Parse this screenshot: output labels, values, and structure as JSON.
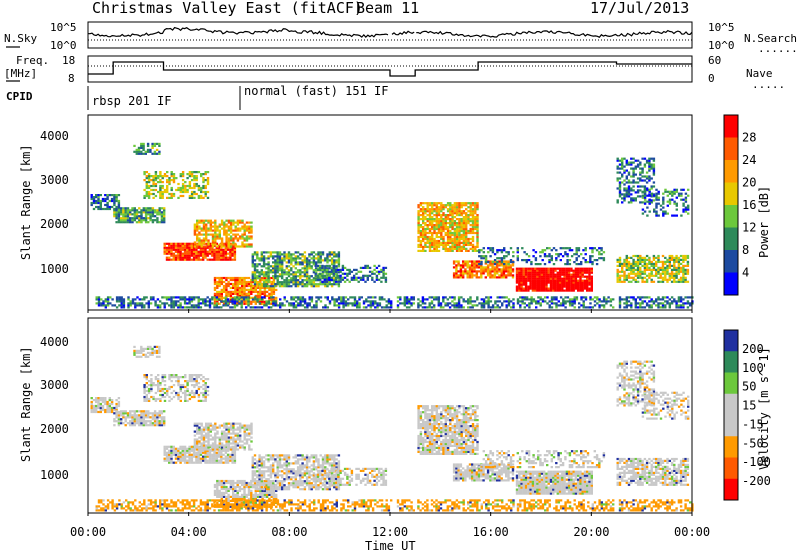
{
  "header": {
    "title": "Christmas Valley East (fitACF)",
    "beam": "Beam 11",
    "date": "17/Jul/2013"
  },
  "left_labels": {
    "nsky": "N.Sky",
    "freq": "Freq.",
    "freq_unit": "[MHz]",
    "cpid": "CPID"
  },
  "right_labels": {
    "nsearch": "N.Search",
    "nave": "Nave",
    "nsearch_style": ".........",
    "nave_style": "....."
  },
  "noise_panel": {
    "left_ticks": [
      "10^5",
      "10^0"
    ],
    "right_ticks": [
      "10^5",
      "10^0"
    ]
  },
  "freq_panel": {
    "left_ticks": [
      "18",
      "8"
    ],
    "right_ticks": [
      "60",
      "0"
    ]
  },
  "cpid_panel": {
    "segments": [
      {
        "label": "rbsp 201 IF",
        "start_hour": 0.0
      },
      {
        "label": "normal (fast) 151 IF",
        "start_hour": 6.0
      }
    ]
  },
  "chart_data": [
    {
      "type": "heatmap",
      "name": "power",
      "ylabel": "Slant Range [km]",
      "ylim": [
        180,
        4600
      ],
      "yticks": [
        "1000",
        "2000",
        "3000",
        "4000"
      ],
      "colorbar": {
        "label": "Power [dB]",
        "ticks": [
          "28",
          "24",
          "20",
          "16",
          "12",
          "8",
          "4"
        ],
        "colors": [
          "#ff0000",
          "#ff5a00",
          "#ff9a00",
          "#e8c800",
          "#6cc83c",
          "#2e8a5a",
          "#1c4aa0",
          "#0000ff"
        ]
      }
    },
    {
      "type": "heatmap",
      "name": "velocity",
      "ylabel": "Slant Range [km]",
      "ylim": [
        180,
        4600
      ],
      "yticks": [
        "1000",
        "2000",
        "3000",
        "4000"
      ],
      "colorbar": {
        "label": "Velocity [m s^-1]",
        "ticks": [
          "200",
          "100",
          "50",
          "15",
          "-15",
          "-50",
          "-100",
          "-200"
        ],
        "colors": [
          "#2030a0",
          "#2e8a5a",
          "#6cc83c",
          "#c8c8c8",
          "#c8c8c8",
          "#ff9a00",
          "#ff5a00",
          "#ff0000"
        ]
      }
    }
  ],
  "time_axis": {
    "xlabel": "Time UT",
    "ticks": [
      "00:00",
      "04:00",
      "08:00",
      "12:00",
      "16:00",
      "20:00",
      "00:00"
    ]
  }
}
